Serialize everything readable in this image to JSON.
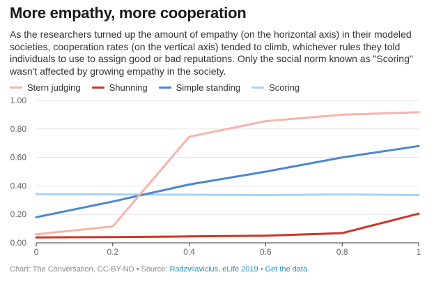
{
  "title": "More empathy, more cooperation",
  "subtitle": "As the researchers turned up the amount of empathy (on the horizontal axis) in their modeled societies, cooperation rates (on the vertical axis) tended to climb, whichever rules they told individuals to use to assign good or bad reputations. Only the social norm known as \"Scoring\" wasn't affected by growing empathy in the society.",
  "footer": {
    "prefix": "Chart: The Conversation, CC-BY-ND • Source: ",
    "source_link": "Radzvilavicius, eLife 2019",
    "separator": " • ",
    "data_link": "Get the data"
  },
  "colors": {
    "stern_judging": "#f7b3a9",
    "shunning": "#cc3526",
    "simple_standing": "#4b86d1",
    "scoring": "#a7d3f5",
    "grid": "#e4e4e4",
    "axis": "#333333"
  },
  "chart_data": {
    "type": "line",
    "x": [
      0,
      0.2,
      0.4,
      0.6,
      0.8,
      1
    ],
    "x_tick_labels": [
      "0",
      "0.2",
      "0.4",
      "0.6",
      "0.8",
      "1"
    ],
    "y_tick_values": [
      0,
      0.2,
      0.4,
      0.6,
      0.8,
      1.0
    ],
    "y_tick_labels": [
      "0.00",
      "0.20",
      "0.40",
      "0.60",
      "0.80",
      "1.00"
    ],
    "xlim": [
      0,
      1
    ],
    "ylim": [
      0,
      1
    ],
    "grid": true,
    "legend_position": "top-left",
    "series": [
      {
        "name": "Stern judging",
        "color_key": "stern_judging",
        "values": [
          0.06,
          0.115,
          0.745,
          0.855,
          0.9,
          0.918
        ]
      },
      {
        "name": "Shunning",
        "color_key": "shunning",
        "values": [
          0.038,
          0.04,
          0.045,
          0.05,
          0.068,
          0.205
        ]
      },
      {
        "name": "Simple standing",
        "color_key": "simple_standing",
        "values": [
          0.18,
          0.29,
          0.41,
          0.5,
          0.6,
          0.68
        ]
      },
      {
        "name": "Scoring",
        "color_key": "scoring",
        "values": [
          0.342,
          0.34,
          0.338,
          0.336,
          0.34,
          0.336
        ]
      }
    ]
  }
}
